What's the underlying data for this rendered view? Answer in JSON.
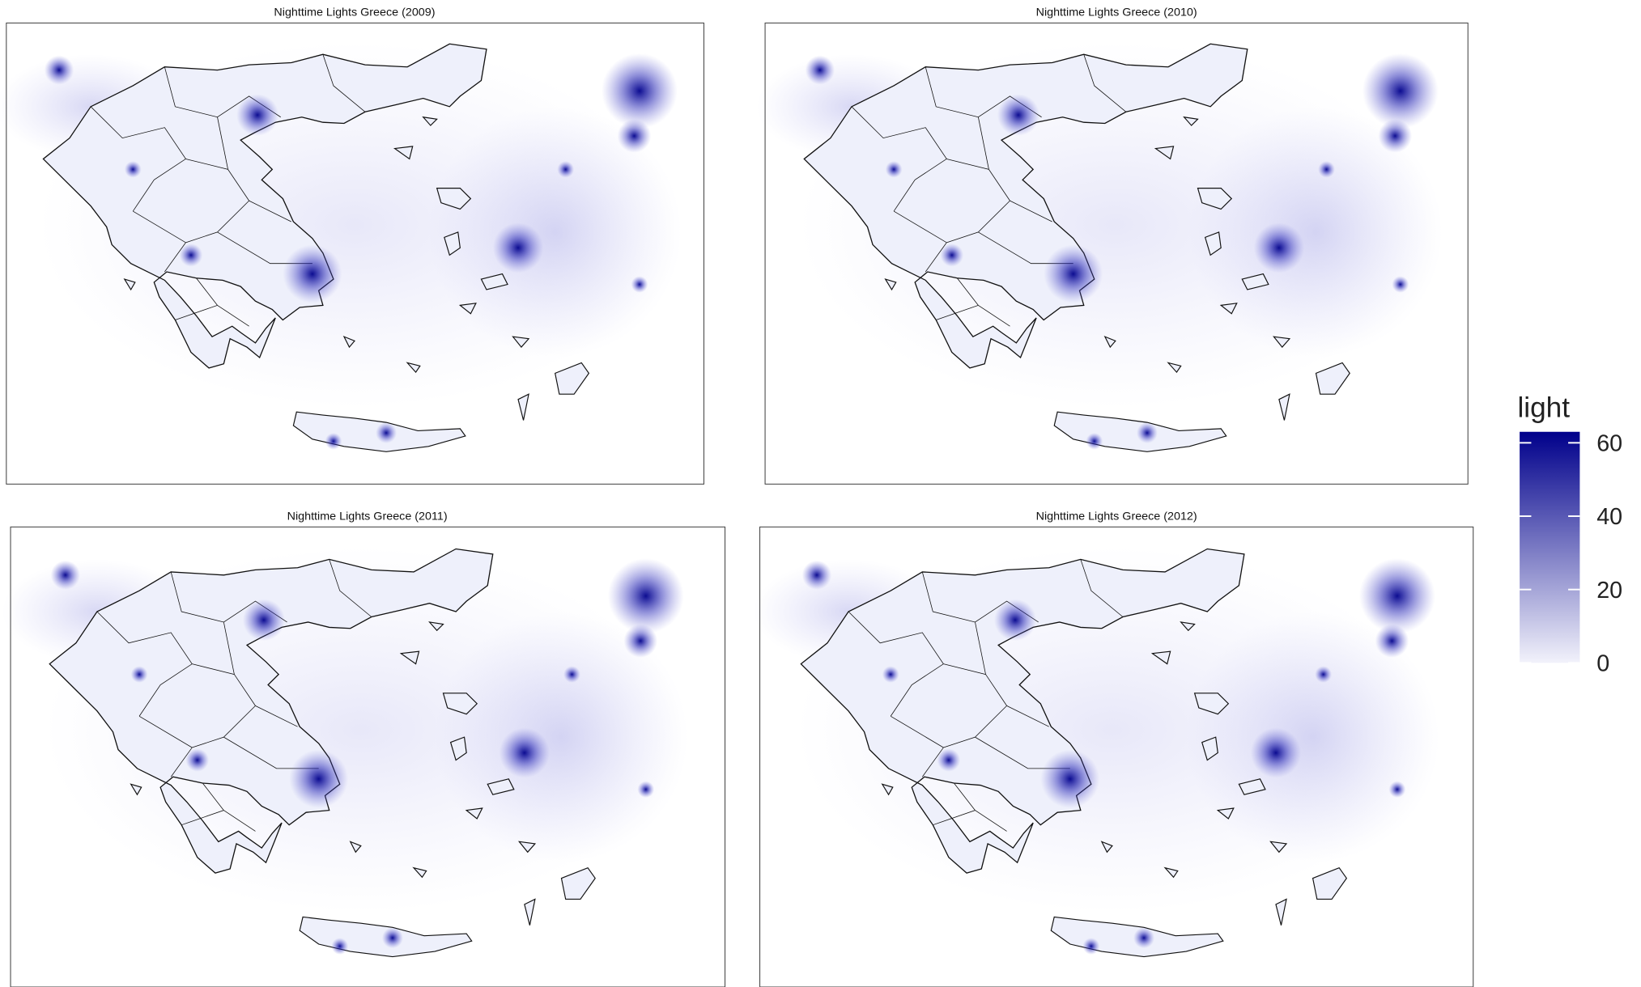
{
  "panels": [
    {
      "title": "Nighttime Lights Greece (2009)"
    },
    {
      "title": "Nighttime Lights Greece (2010)"
    },
    {
      "title": "Nighttime Lights Greece (2011)"
    },
    {
      "title": "Nighttime Lights Greece (2012)"
    }
  ],
  "legend": {
    "title": "light",
    "lim": [
      0,
      63
    ],
    "ticks": [
      0,
      20,
      40,
      60
    ],
    "low_color": "#f2f2fb",
    "high_color": "#00008b"
  }
}
